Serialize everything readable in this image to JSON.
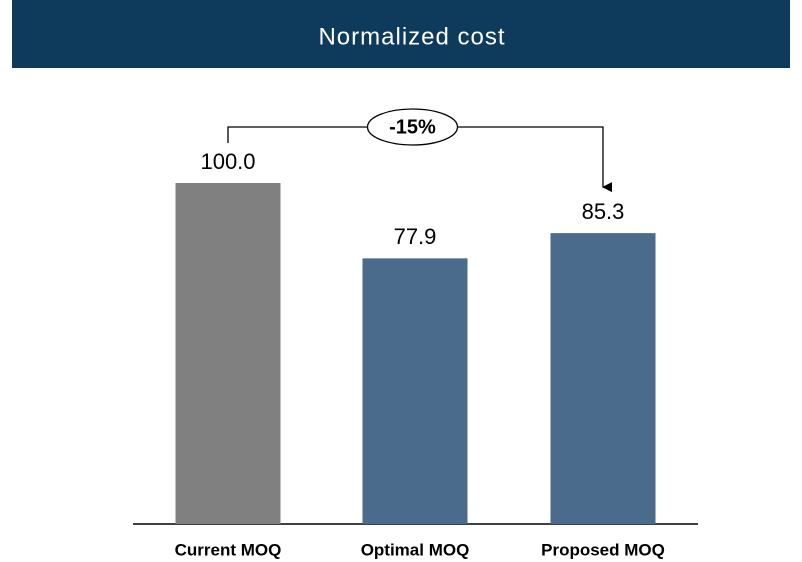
{
  "chart_data": {
    "type": "bar",
    "title": "Normalized cost",
    "categories": [
      "Current MOQ",
      "Optimal MOQ",
      "Proposed MOQ"
    ],
    "values": [
      100,
      77.9,
      85.3
    ],
    "value_labels": [
      "100.0",
      "77.9",
      "85.3"
    ],
    "colors": [
      "#808080",
      "#4a6b8c",
      "#4a6b8c"
    ],
    "ylim": [
      0,
      100
    ],
    "annotation": "-15%"
  }
}
